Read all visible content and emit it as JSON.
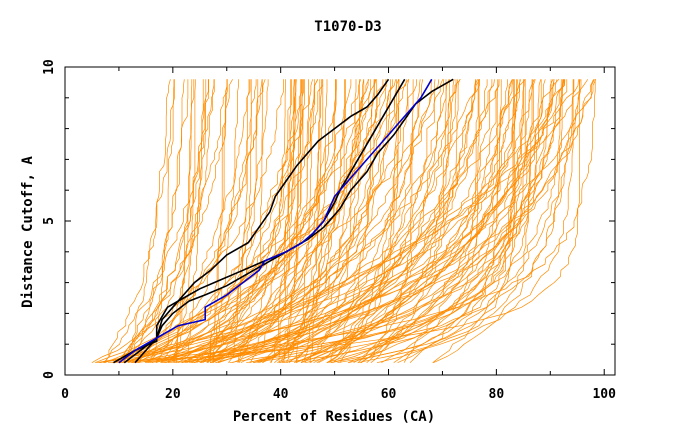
{
  "chart_data": {
    "type": "line",
    "title": "T1070-D3",
    "xlabel": "Percent of Residues (CA)",
    "ylabel": "Distance Cutoff, A",
    "xlim": [
      0,
      102
    ],
    "ylim": [
      0,
      10
    ],
    "x_ticks": [
      "0",
      "20",
      "40",
      "60",
      "80",
      "100"
    ],
    "y_ticks": [
      "0",
      "5",
      "10"
    ],
    "grid": false,
    "legend": "none",
    "colors": {
      "models": "#ff8c00",
      "highlight_a": "#000000",
      "highlight_b": "#0000cd"
    },
    "background_models": {
      "count": 160,
      "x_at_cutoff_0_4": [
        5,
        75
      ],
      "x_at_cutoff_9_6": [
        18,
        100
      ]
    },
    "series": [
      {
        "color": "#000000",
        "points": [
          [
            13,
            0.4
          ],
          [
            15,
            0.8
          ],
          [
            17,
            1.2
          ],
          [
            18,
            1.6
          ],
          [
            20,
            2.0
          ],
          [
            23,
            2.4
          ],
          [
            26,
            2.6
          ],
          [
            30,
            2.9
          ],
          [
            33,
            3.2
          ],
          [
            36,
            3.5
          ],
          [
            40,
            3.9
          ],
          [
            44,
            4.3
          ],
          [
            46,
            4.6
          ],
          [
            48,
            5.0
          ],
          [
            50,
            5.6
          ],
          [
            51,
            6.0
          ],
          [
            53,
            6.6
          ],
          [
            55,
            7.2
          ],
          [
            57,
            7.8
          ],
          [
            59,
            8.4
          ],
          [
            61,
            9.0
          ],
          [
            63,
            9.6
          ]
        ]
      },
      {
        "color": "#000000",
        "points": [
          [
            9,
            0.4
          ],
          [
            13,
            0.8
          ],
          [
            17,
            1.1
          ],
          [
            17,
            1.6
          ],
          [
            19,
            2.2
          ],
          [
            22,
            2.5
          ],
          [
            25,
            2.8
          ],
          [
            29,
            3.1
          ],
          [
            33,
            3.4
          ],
          [
            37,
            3.7
          ],
          [
            41,
            4.0
          ],
          [
            45,
            4.4
          ],
          [
            48,
            4.8
          ],
          [
            51,
            5.4
          ],
          [
            53,
            6.0
          ],
          [
            56,
            6.6
          ],
          [
            58,
            7.2
          ],
          [
            61,
            7.8
          ],
          [
            63,
            8.3
          ],
          [
            65,
            8.8
          ],
          [
            68,
            9.2
          ],
          [
            72,
            9.6
          ]
        ]
      },
      {
        "color": "#000000",
        "points": [
          [
            11,
            0.4
          ],
          [
            14,
            0.8
          ],
          [
            17,
            1.2
          ],
          [
            18,
            1.8
          ],
          [
            20,
            2.2
          ],
          [
            22,
            2.6
          ],
          [
            24,
            3.0
          ],
          [
            27,
            3.4
          ],
          [
            30,
            3.9
          ],
          [
            34,
            4.3
          ],
          [
            36,
            4.8
          ],
          [
            38,
            5.3
          ],
          [
            39,
            5.8
          ],
          [
            41,
            6.3
          ],
          [
            43,
            6.8
          ],
          [
            45,
            7.2
          ],
          [
            47,
            7.6
          ],
          [
            50,
            8.0
          ],
          [
            53,
            8.4
          ],
          [
            56,
            8.7
          ],
          [
            58,
            9.1
          ],
          [
            60,
            9.6
          ]
        ]
      },
      {
        "color": "#0000cd",
        "points": [
          [
            10,
            0.4
          ],
          [
            13,
            0.8
          ],
          [
            17,
            1.2
          ],
          [
            21,
            1.6
          ],
          [
            26,
            1.8
          ],
          [
            26,
            2.2
          ],
          [
            30,
            2.6
          ],
          [
            33,
            3.0
          ],
          [
            36,
            3.4
          ],
          [
            37,
            3.7
          ],
          [
            41,
            4.0
          ],
          [
            44,
            4.3
          ],
          [
            46,
            4.6
          ],
          [
            48,
            5.0
          ],
          [
            49,
            5.4
          ],
          [
            50,
            5.8
          ],
          [
            52,
            6.2
          ],
          [
            54,
            6.6
          ],
          [
            56,
            7.0
          ],
          [
            58,
            7.4
          ],
          [
            60,
            7.8
          ],
          [
            62,
            8.2
          ],
          [
            64,
            8.6
          ],
          [
            66,
            9.0
          ],
          [
            68,
            9.6
          ]
        ]
      }
    ]
  }
}
